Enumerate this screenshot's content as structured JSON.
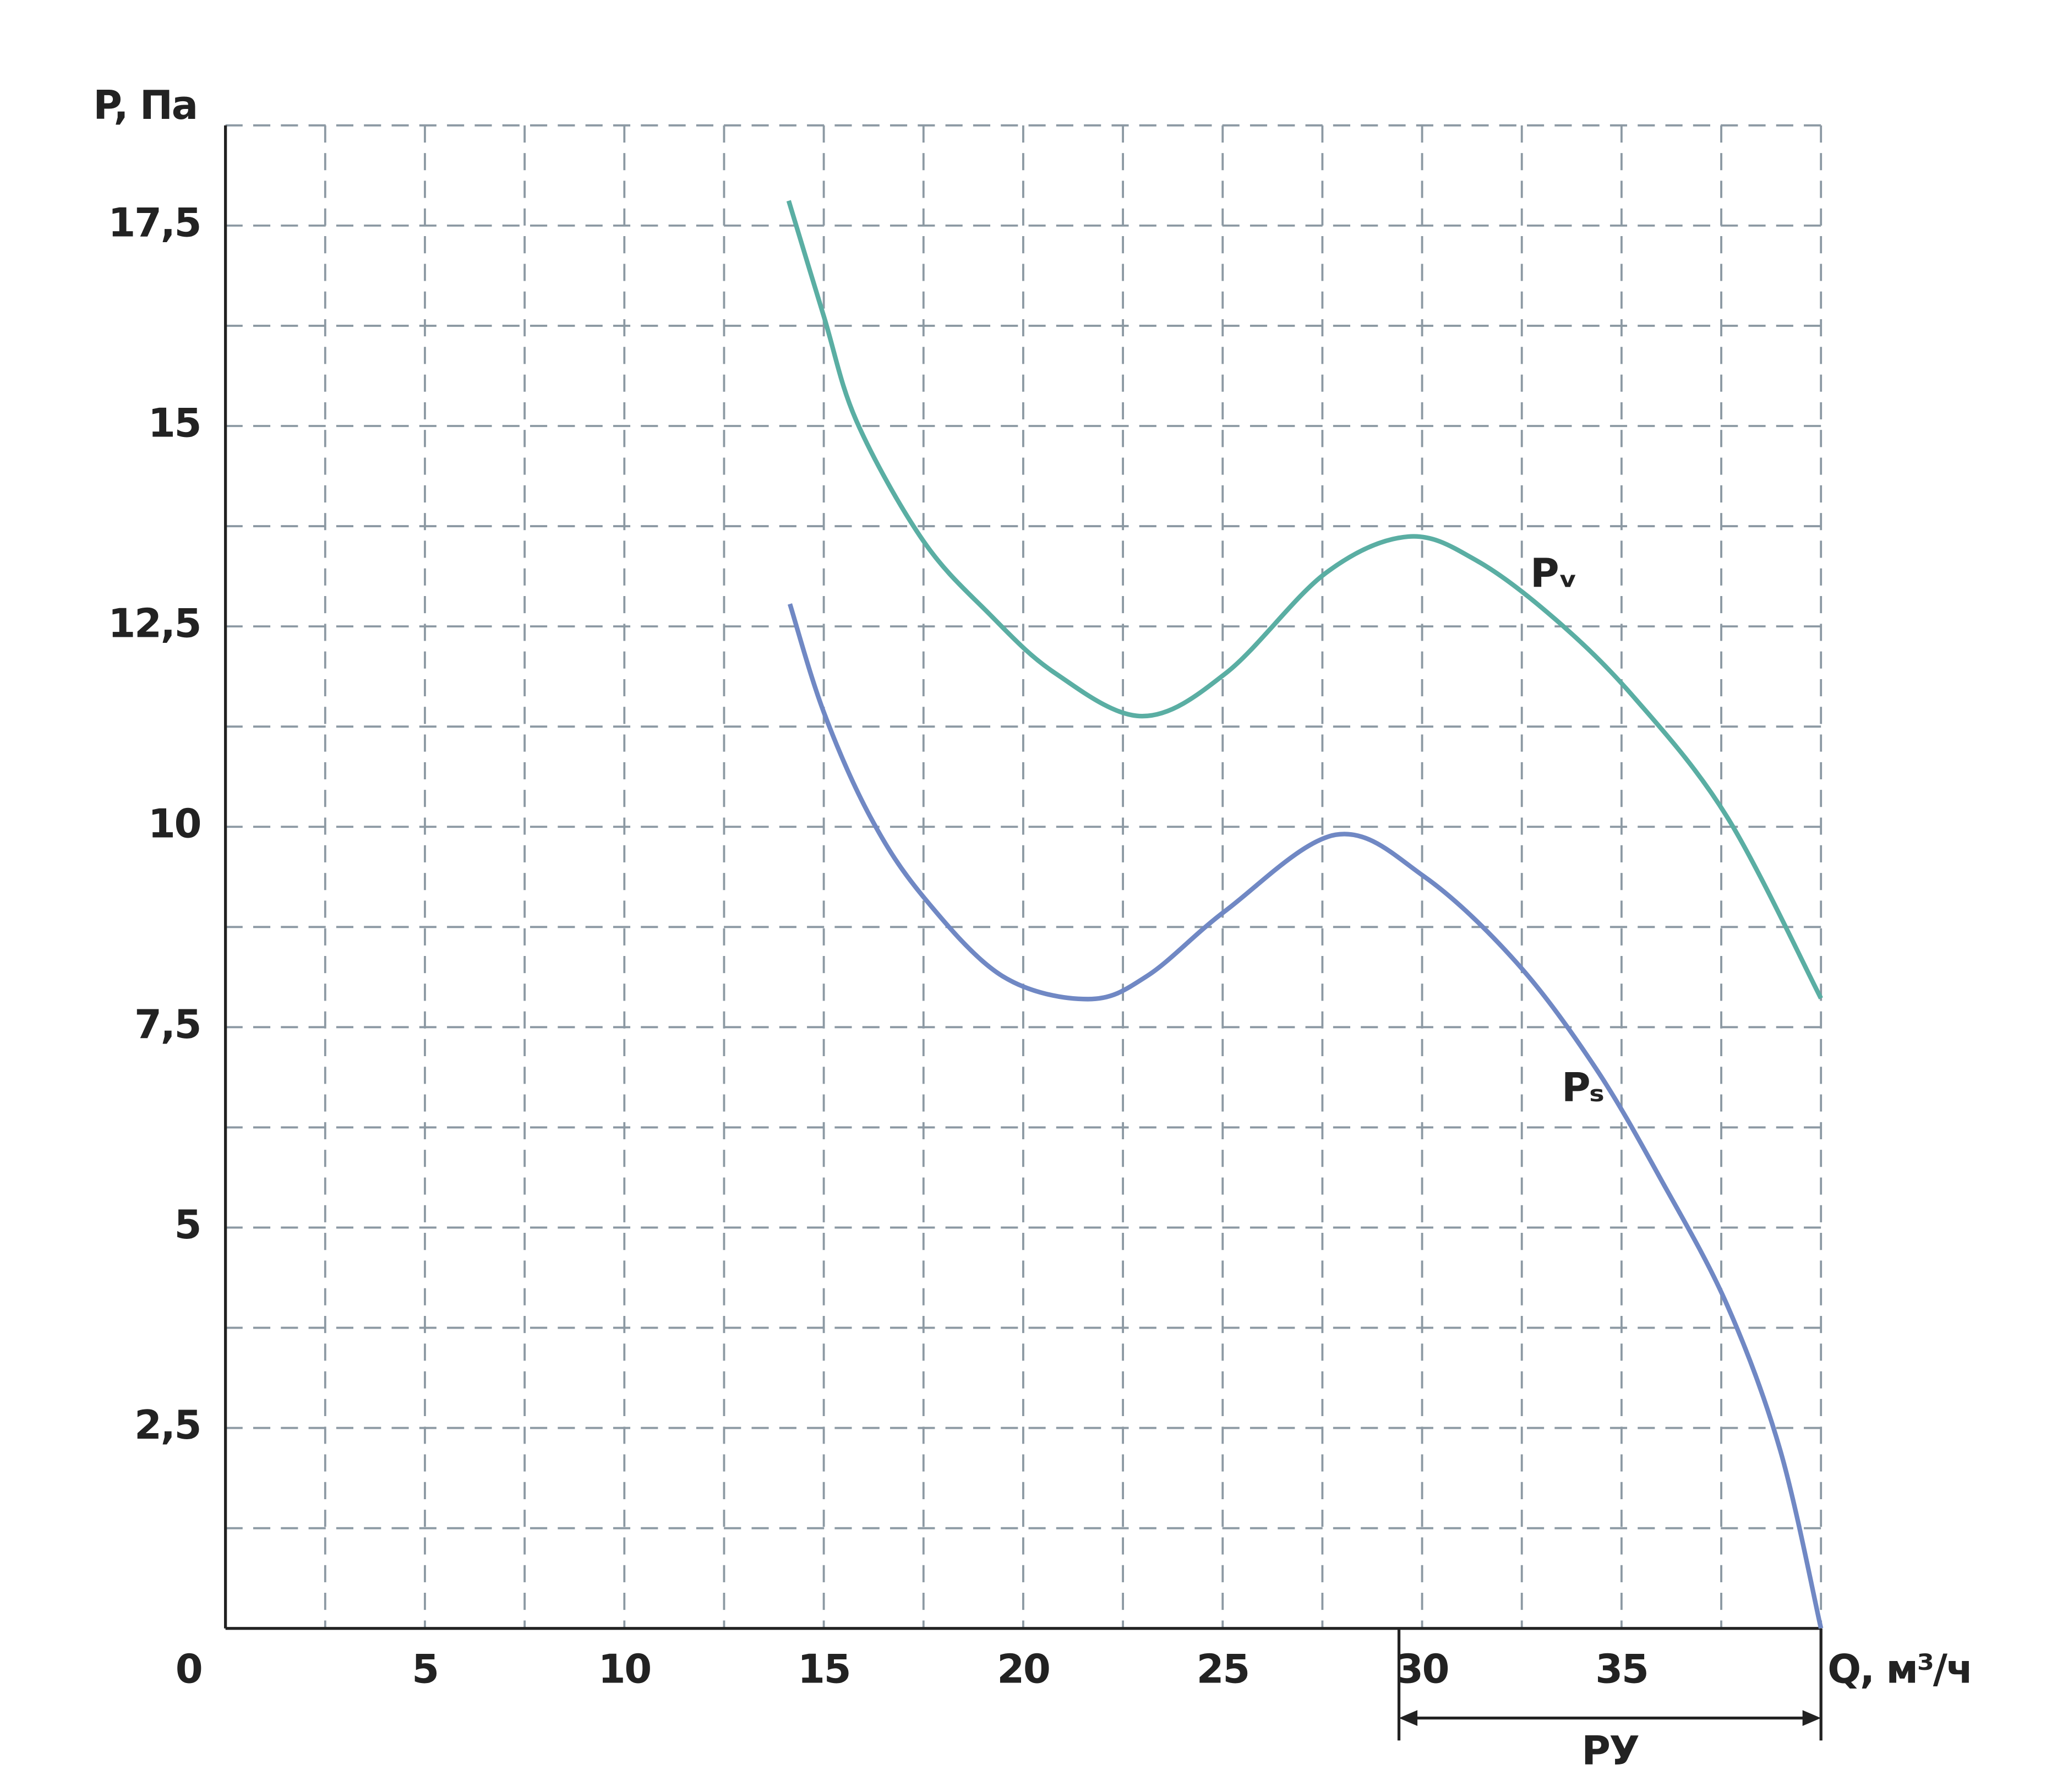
{
  "chart_data": {
    "type": "line",
    "xlabel": "Q, м³/ч",
    "ylabel": "P, Па",
    "xlim": [
      0,
      40
    ],
    "ylim": [
      0,
      18.75
    ],
    "xticks": [
      0,
      5,
      10,
      15,
      20,
      25,
      30,
      35
    ],
    "yticks": [
      {
        "value": 2.5,
        "label": "2,5"
      },
      5,
      {
        "value": 7.5,
        "label": "7,5"
      },
      10,
      {
        "value": 12.5,
        "label": "12,5"
      },
      15,
      {
        "value": 17.5,
        "label": "17,5"
      }
    ],
    "xgrid": [
      2.5,
      5,
      7.5,
      10,
      12.5,
      15,
      17.5,
      20,
      22.5,
      25,
      27.5,
      30,
      32.5,
      35,
      37.5,
      40
    ],
    "ygrid": [
      1.25,
      2.5,
      3.75,
      5,
      6.25,
      7.5,
      8.75,
      10,
      11.25,
      12.5,
      13.75,
      15,
      16.25,
      17.5,
      18.75
    ],
    "grid": true,
    "series": [
      {
        "name": "Pᵥ",
        "color": "#5aaea3",
        "x": [
          14.12,
          15,
          15.83,
          17.49,
          19.14,
          20.79,
          22.98,
          25.09,
          27.57,
          29.65,
          31.37,
          33.36,
          35.34,
          37.65,
          40
        ],
        "values": [
          17.81,
          16.37,
          15.05,
          13.57,
          12.66,
          11.92,
          11.38,
          11.92,
          13.16,
          13.62,
          13.32,
          12.58,
          11.6,
          10.12,
          7.86
        ]
      },
      {
        "name": "Pₛ",
        "color": "#7088c4",
        "x": [
          14.15,
          15,
          16.17,
          17.49,
          19.47,
          21.62,
          23.11,
          25.09,
          27.83,
          30.05,
          32.36,
          34.35,
          36,
          37.65,
          38.98,
          40
        ],
        "values": [
          12.78,
          11.43,
          10.12,
          9.13,
          8.14,
          7.85,
          8.14,
          8.96,
          9.9,
          9.38,
          8.31,
          6.99,
          5.59,
          4.03,
          2.22,
          0
        ]
      }
    ],
    "annotation": {
      "text": "РУ",
      "x_range": [
        29.42,
        40
      ]
    }
  }
}
